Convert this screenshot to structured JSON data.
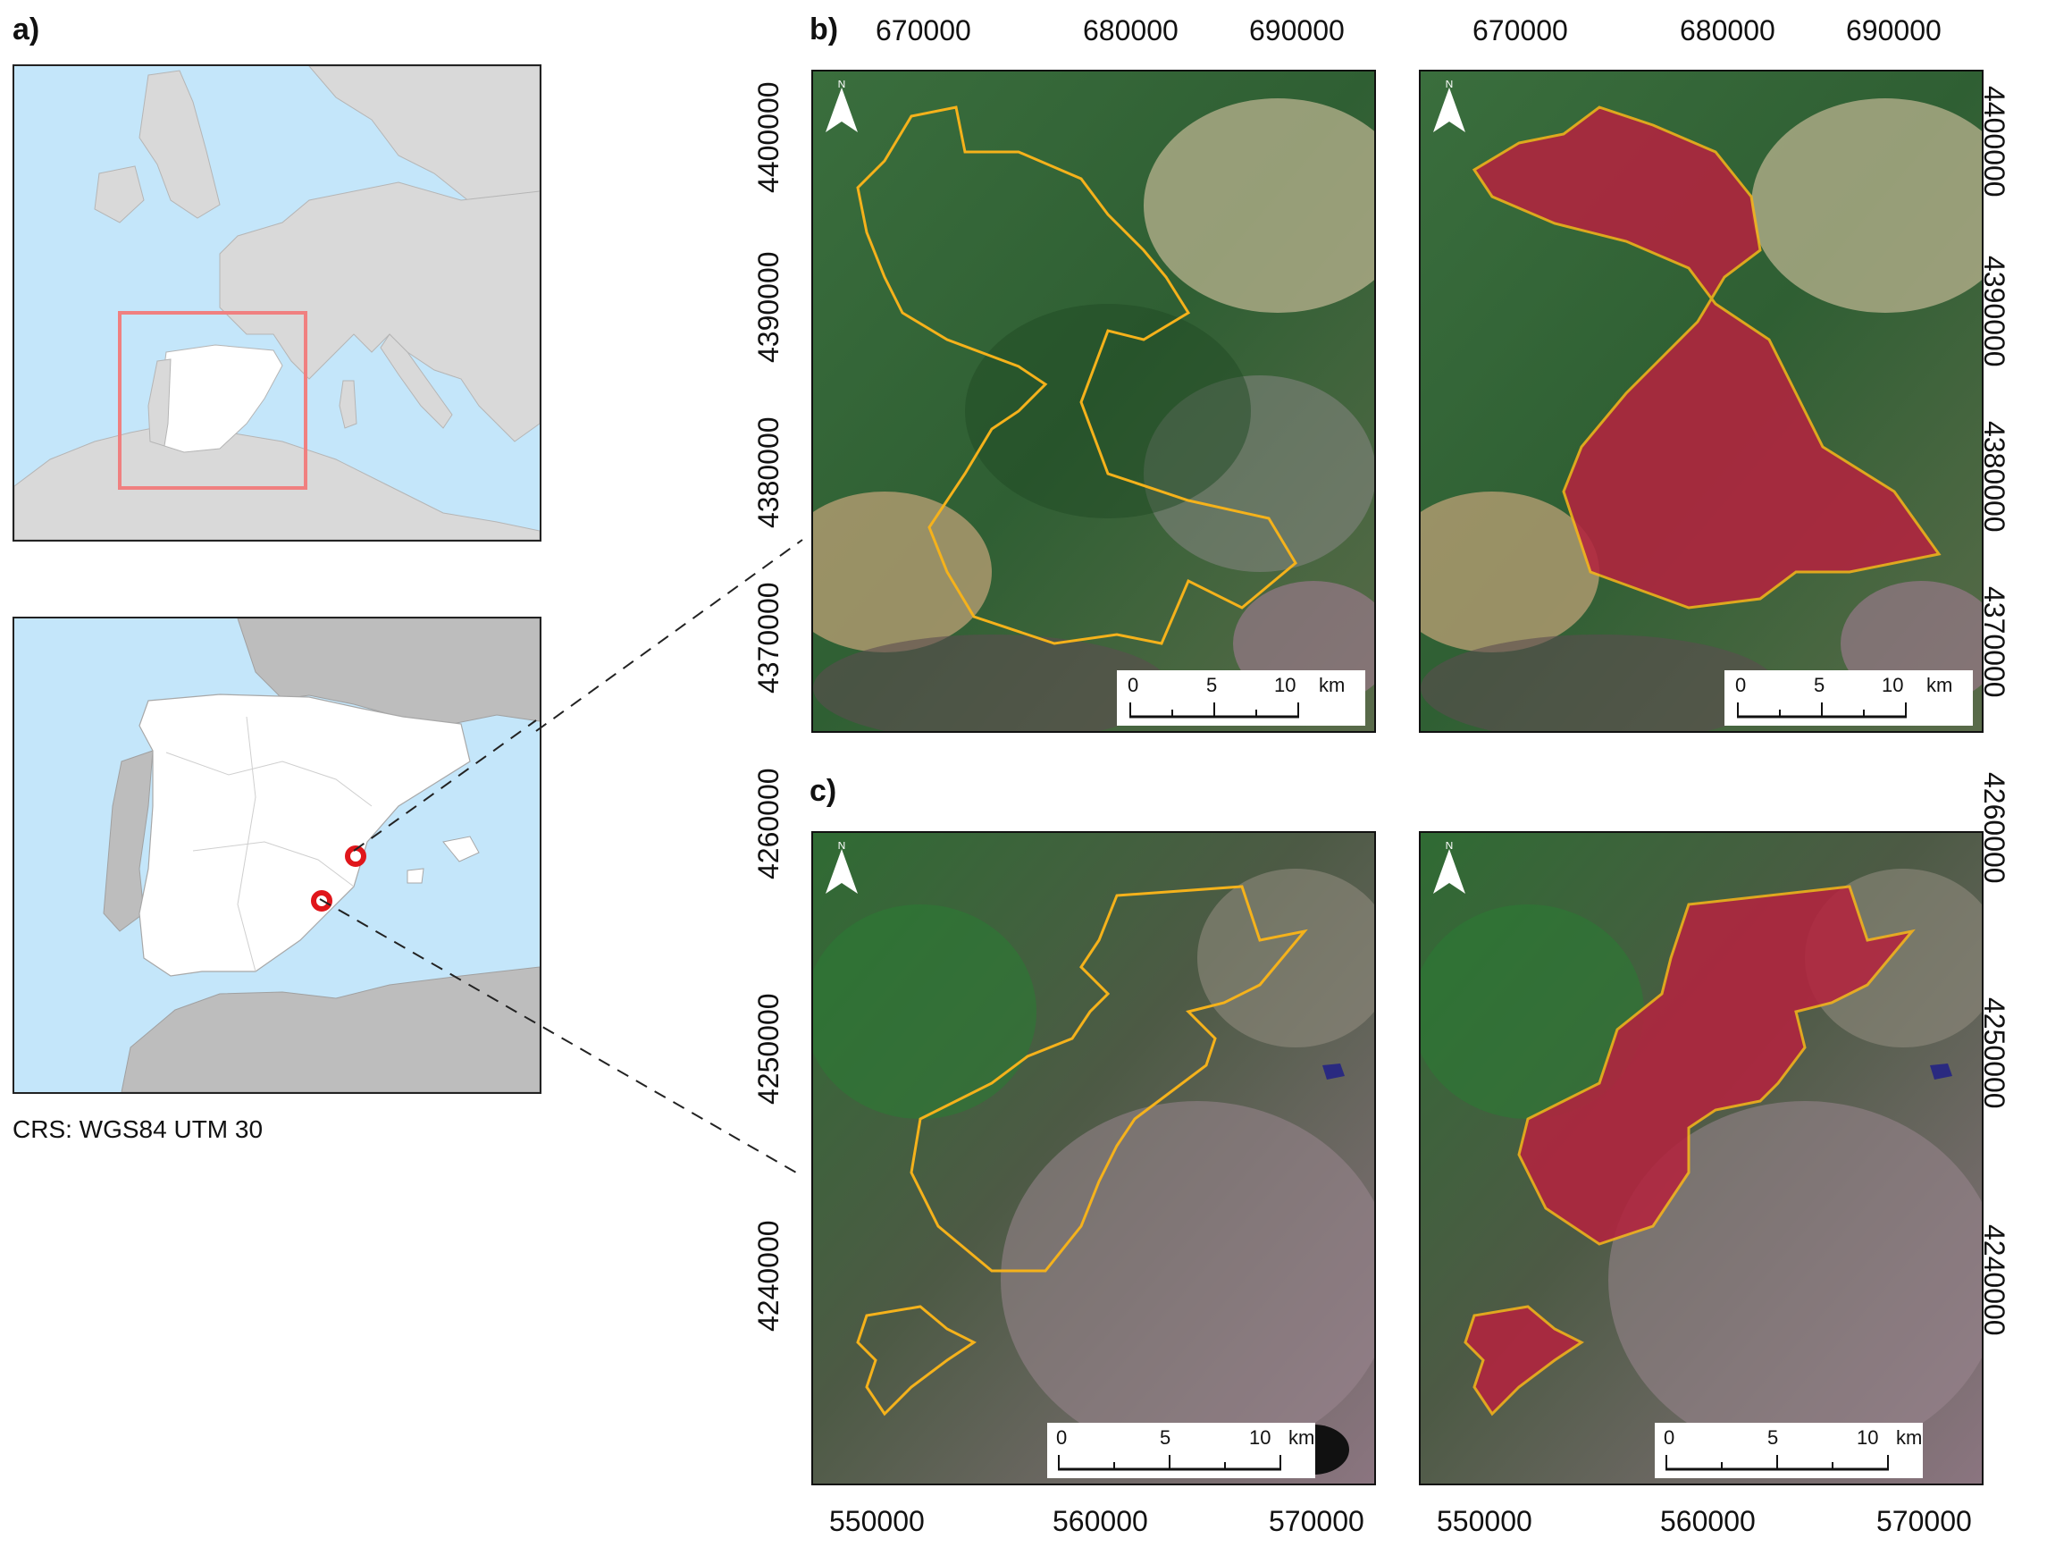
{
  "panels": {
    "a": {
      "label": "a)"
    },
    "b": {
      "label": "b)"
    },
    "c": {
      "label": "c)"
    }
  },
  "crs_text": "CRS: WGS84 UTM 30",
  "axes": {
    "b_top_x_ticks": [
      "670000",
      "680000",
      "690000"
    ],
    "b_y_ticks": [
      "4400000",
      "4390000",
      "4380000",
      "4370000"
    ],
    "c_bottom_x_ticks": [
      "550000",
      "560000",
      "570000"
    ],
    "c_y_ticks": [
      "4260000",
      "4250000",
      "4240000"
    ]
  },
  "scalebar": {
    "labels": [
      "0",
      "5",
      "10"
    ],
    "unit": "km"
  },
  "north_arrow": {
    "letter": "N"
  },
  "colors": {
    "sea": "#c4e6fa",
    "land": "#d9d9d9",
    "spain": "#ffffff",
    "inset_frame": "#f08080",
    "fire_marker": "#e0161b",
    "fire_perimeter": "#f5b21b",
    "burned": "#b3243f",
    "vegetation": "#2f6b33"
  }
}
